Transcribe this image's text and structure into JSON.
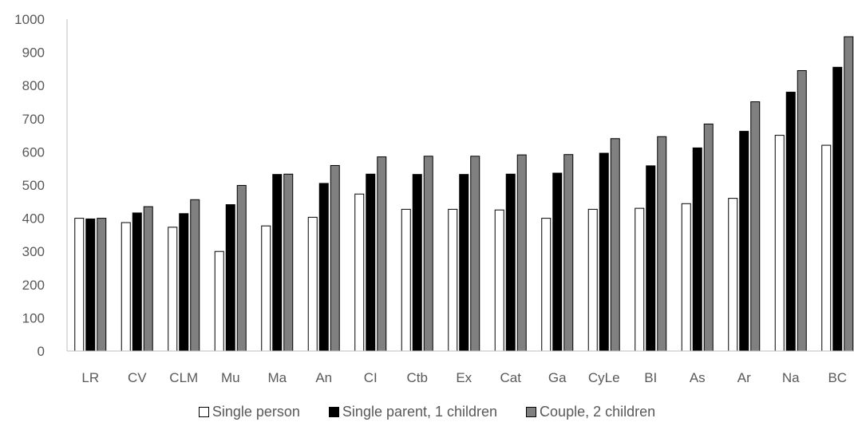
{
  "chart_data": {
    "type": "bar",
    "title": "",
    "xlabel": "",
    "ylabel": "",
    "ylim": [
      0,
      1000
    ],
    "yticks": [
      0,
      100,
      200,
      300,
      400,
      500,
      600,
      700,
      800,
      900,
      1000
    ],
    "grid": false,
    "legend_position": "bottom",
    "categories": [
      "LR",
      "CV",
      "CLM",
      "Mu",
      "Ma",
      "An",
      "CI",
      "Ctb",
      "Ex",
      "Cat",
      "Ga",
      "CyLe",
      "BI",
      "As",
      "Ar",
      "Na",
      "BC"
    ],
    "series": [
      {
        "name": "Single person",
        "color": "#ffffff",
        "values": [
          400,
          387,
          373,
          300,
          377,
          403,
          473,
          427,
          427,
          425,
          400,
          427,
          430,
          444,
          460,
          650,
          620
        ]
      },
      {
        "name": "Single parent, 1 children",
        "color": "#000000",
        "values": [
          398,
          416,
          414,
          441,
          532,
          505,
          533,
          532,
          532,
          533,
          536,
          596,
          558,
          612,
          662,
          780,
          855
        ]
      },
      {
        "name": "Couple, 2 children",
        "color": "#808080",
        "values": [
          400,
          435,
          456,
          499,
          533,
          559,
          585,
          587,
          587,
          591,
          592,
          640,
          646,
          684,
          751,
          845,
          947
        ]
      }
    ]
  }
}
